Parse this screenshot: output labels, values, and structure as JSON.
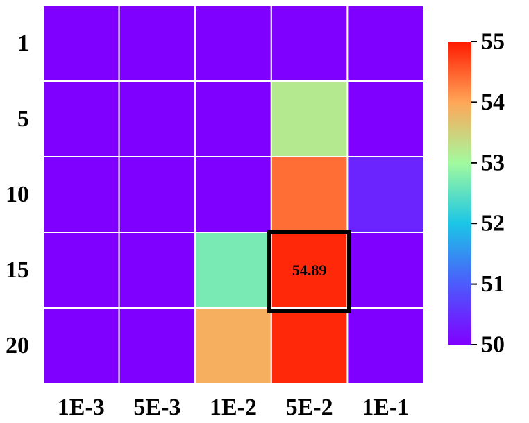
{
  "chart_data": {
    "type": "heatmap",
    "x_categories": [
      "1E-3",
      "5E-3",
      "1E-2",
      "5E-2",
      "1E-1"
    ],
    "y_categories": [
      "1",
      "5",
      "10",
      "15",
      "20"
    ],
    "values": [
      [
        50.0,
        50.0,
        50.0,
        50.0,
        50.0
      ],
      [
        50.0,
        50.0,
        50.0,
        53.2,
        50.0
      ],
      [
        50.0,
        50.0,
        50.0,
        54.4,
        50.4
      ],
      [
        50.0,
        50.0,
        52.7,
        54.89,
        50.0
      ],
      [
        50.0,
        50.0,
        53.9,
        54.9,
        50.0
      ]
    ],
    "highlight": {
      "row": 3,
      "col": 3,
      "label": "54.89"
    },
    "colorbar": {
      "min": 50,
      "max": 55,
      "ticks": [
        "50",
        "51",
        "52",
        "53",
        "54",
        "55"
      ],
      "colormap": "rainbow"
    }
  }
}
